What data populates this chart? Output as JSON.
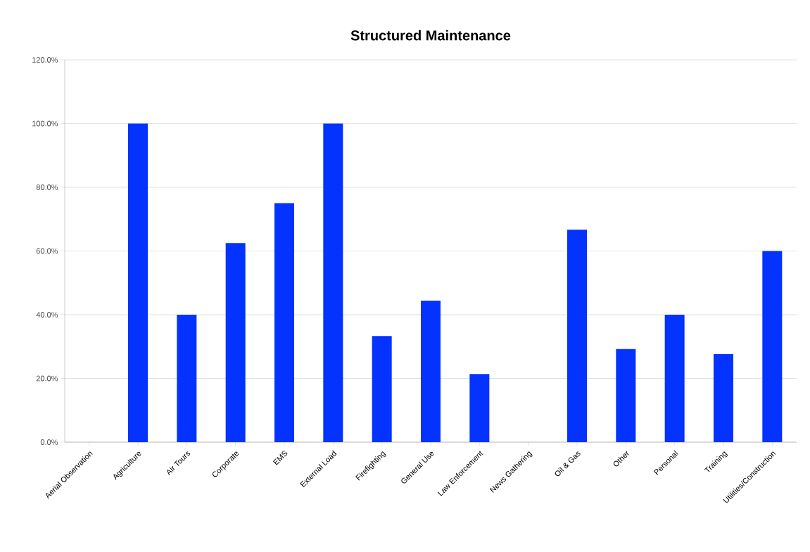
{
  "chart_data": {
    "type": "bar",
    "title": "Structured Maintenance",
    "categories": [
      "Aerial Observation",
      "Agriculture",
      "Air Tours",
      "Corporate",
      "EMS",
      "External Load",
      "Firefighting",
      "General Use",
      "Law Enforcement",
      "News Gathering",
      "Oil & Gas",
      "Other",
      "Personal",
      "Training",
      "Utilities/Construction"
    ],
    "values": [
      0,
      100,
      40,
      62.5,
      75,
      100,
      33.3,
      44.4,
      21.4,
      0,
      66.7,
      29.2,
      40,
      27.6,
      60
    ],
    "color": "#0433ff",
    "ylim": [
      0,
      120
    ],
    "yticks": [
      {
        "value": 0,
        "label": "0.0%"
      },
      {
        "value": 20,
        "label": "20.0%"
      },
      {
        "value": 40,
        "label": "40.0%"
      },
      {
        "value": 60,
        "label": "60.0%"
      },
      {
        "value": 80,
        "label": "80.0%"
      },
      {
        "value": 100,
        "label": "100.0%"
      },
      {
        "value": 120,
        "label": "120.0%"
      }
    ],
    "grid": "y"
  }
}
